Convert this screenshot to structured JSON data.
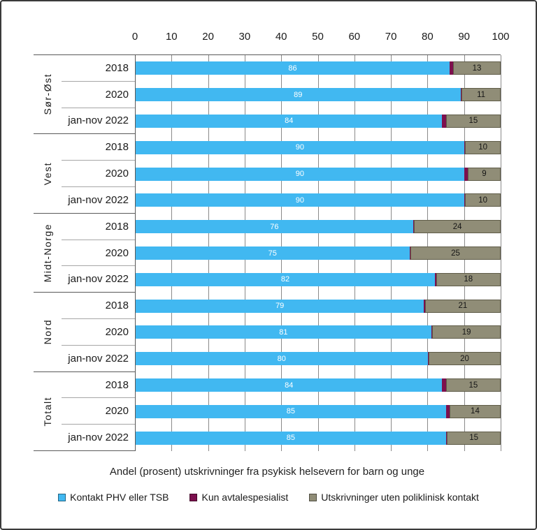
{
  "chart_data": {
    "type": "bar",
    "orientation": "horizontal",
    "stacked": true,
    "grid": true,
    "legend_position": "bottom",
    "title": "Andel (prosent)  utskrivninger fra psykisk helsevern for barn og unge",
    "x_axis": {
      "min": 0,
      "max": 100,
      "tick_interval": 10,
      "tick_labels": [
        "0",
        "10",
        "20",
        "30",
        "40",
        "50",
        "60",
        "70",
        "80",
        "90",
        "100"
      ]
    },
    "series": [
      {
        "name": "Kontakt PHV eller TSB",
        "color": "#41b8f1"
      },
      {
        "name": "Kun avtalespesialist",
        "color": "#7c104e"
      },
      {
        "name": "Utskrivninger uten poliklinisk kontakt",
        "color": "#908d77"
      }
    ],
    "groups": [
      {
        "region": "Sør-Øst",
        "rows": [
          {
            "label": "2018",
            "values": [
              86,
              1,
              13
            ]
          },
          {
            "label": "2020",
            "values": [
              89,
              0,
              11
            ]
          },
          {
            "label": "jan-nov 2022",
            "values": [
              84,
              1,
              15
            ]
          }
        ]
      },
      {
        "region": "Vest",
        "rows": [
          {
            "label": "2018",
            "values": [
              90,
              0,
              10
            ]
          },
          {
            "label": "2020",
            "values": [
              90,
              1,
              9
            ]
          },
          {
            "label": "jan-nov 2022",
            "values": [
              90,
              0,
              10
            ]
          }
        ]
      },
      {
        "region": "Midt-Norge",
        "rows": [
          {
            "label": "2018",
            "values": [
              76,
              0,
              24
            ]
          },
          {
            "label": "2020",
            "values": [
              75,
              0,
              25
            ]
          },
          {
            "label": "jan-nov 2022",
            "values": [
              82,
              0,
              18
            ]
          }
        ]
      },
      {
        "region": "Nord",
        "rows": [
          {
            "label": "2018",
            "values": [
              79,
              0,
              21
            ]
          },
          {
            "label": "2020",
            "values": [
              81,
              0,
              19
            ]
          },
          {
            "label": "jan-nov 2022",
            "values": [
              80,
              0,
              20
            ]
          }
        ]
      },
      {
        "region": "Totalt",
        "rows": [
          {
            "label": "2018",
            "values": [
              84,
              1,
              15
            ]
          },
          {
            "label": "2020",
            "values": [
              85,
              1,
              14
            ]
          },
          {
            "label": "jan-nov 2022",
            "values": [
              85,
              0,
              15
            ]
          }
        ]
      }
    ]
  }
}
